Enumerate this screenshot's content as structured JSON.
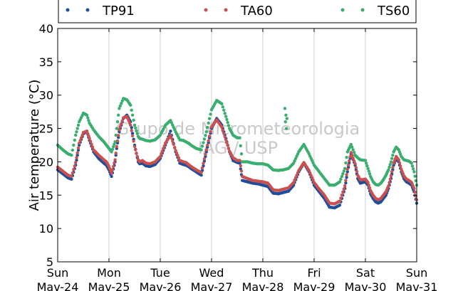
{
  "chart_data": {
    "type": "scatter",
    "ylabel": "Air temperature (°C)",
    "ylim": [
      5,
      40
    ],
    "yticks": [
      "5",
      "10",
      "15",
      "20",
      "25",
      "30",
      "35",
      "40"
    ],
    "xlim": [
      0,
      7
    ],
    "xticks": [
      {
        "day": "Sun",
        "date": "Mav-24"
      },
      {
        "day": "Mon",
        "date": "Mav-25"
      },
      {
        "day": "Tue",
        "date": "Mav-26"
      },
      {
        "day": "Wed",
        "date": "Mav-27"
      },
      {
        "day": "Thu",
        "date": "Mav-28"
      },
      {
        "day": "Fri",
        "date": "Mav-29"
      },
      {
        "day": "Sat",
        "date": "Mav-30"
      },
      {
        "day": "Sun",
        "date": "Mav-31"
      }
    ],
    "grid": "vertical",
    "legend": "top",
    "watermark": [
      "Grupo de Micrometeorologia",
      "IAG / USP"
    ],
    "series": [
      {
        "name": "TP91",
        "color": "#1f4e9a",
        "x": [
          0,
          0.1,
          0.2,
          0.27,
          0.35,
          0.42,
          0.5,
          0.57,
          0.62,
          0.7,
          0.8,
          0.9,
          0.95,
          1.0,
          1.05,
          1.12,
          1.15,
          1.2,
          1.28,
          1.35,
          1.42,
          1.5,
          1.57,
          1.6,
          1.65,
          1.72,
          1.8,
          1.9,
          2.0,
          2.1,
          2.2,
          2.3,
          2.38,
          2.45,
          2.5,
          2.55,
          2.6,
          2.7,
          2.8,
          2.9,
          3.0,
          3.1,
          3.2,
          3.28,
          3.35,
          3.42,
          3.5,
          3.55,
          3.6,
          3.7,
          3.8,
          3.9,
          4.0,
          4.1,
          4.2,
          4.3,
          4.4,
          4.5,
          4.6,
          4.7,
          4.8,
          4.9,
          5.0,
          5.1,
          5.2,
          5.3,
          5.4,
          5.5,
          5.6,
          5.65,
          5.72,
          5.8,
          5.85,
          5.9,
          6.0,
          6.05,
          6.1,
          6.15,
          6.2,
          6.25,
          6.3,
          6.35,
          6.4,
          6.45,
          6.5,
          6.55,
          6.6,
          6.65,
          6.7,
          6.75,
          6.8,
          6.85,
          6.9,
          6.95,
          7.0
        ],
        "y": [
          18.8,
          18.2,
          17.6,
          17.4,
          19.5,
          22.5,
          24.2,
          24.6,
          23.2,
          21.5,
          20.5,
          19.8,
          19.5,
          18.8,
          17.8,
          20.0,
          22.0,
          24.5,
          26.5,
          27.0,
          26.0,
          22.5,
          20.0,
          19.7,
          19.8,
          19.4,
          19.3,
          19.6,
          20.5,
          22.5,
          24.6,
          21.5,
          19.8,
          19.6,
          19.5,
          19.3,
          19.0,
          18.5,
          18.0,
          21.5,
          25.0,
          26.5,
          25.5,
          23.5,
          21.5,
          20.2,
          19.9,
          19.8,
          17.2,
          17.0,
          16.8,
          16.7,
          16.5,
          16.3,
          15.3,
          15.2,
          15.4,
          15.6,
          16.5,
          18.5,
          19.8,
          18.5,
          16.5,
          15.5,
          14.5,
          13.2,
          13.1,
          13.5,
          16.0,
          18.5,
          21.2,
          19.5,
          17.5,
          16.8,
          17.0,
          16.5,
          15.2,
          14.5,
          14.0,
          13.8,
          14.0,
          14.5,
          15.0,
          16.0,
          17.5,
          19.5,
          20.5,
          20.0,
          18.5,
          17.5,
          17.0,
          16.8,
          16.5,
          15.5,
          13.8
        ]
      },
      {
        "name": "TA60",
        "color": "#c9504f",
        "x": [
          0,
          0.1,
          0.2,
          0.27,
          0.35,
          0.42,
          0.5,
          0.57,
          0.62,
          0.7,
          0.8,
          0.9,
          0.95,
          1.0,
          1.05,
          1.12,
          1.15,
          1.2,
          1.28,
          1.35,
          1.42,
          1.5,
          1.57,
          1.6,
          1.65,
          1.72,
          1.8,
          1.9,
          2.0,
          2.1,
          2.2,
          2.3,
          2.38,
          2.45,
          2.5,
          2.55,
          2.6,
          2.7,
          2.8,
          2.9,
          3.0,
          3.1,
          3.2,
          3.28,
          3.35,
          3.42,
          3.5,
          3.55,
          3.6,
          3.7,
          3.8,
          3.9,
          4.0,
          4.1,
          4.2,
          4.3,
          4.4,
          4.5,
          4.6,
          4.7,
          4.8,
          4.9,
          5.0,
          5.1,
          5.2,
          5.3,
          5.4,
          5.5,
          5.6,
          5.65,
          5.72,
          5.8,
          5.85,
          5.9,
          6.0,
          6.05,
          6.1,
          6.15,
          6.2,
          6.25,
          6.3,
          6.35,
          6.4,
          6.45,
          6.5,
          6.55,
          6.6,
          6.65,
          6.7,
          6.75,
          6.8,
          6.85,
          6.9,
          6.95,
          7.0
        ],
        "y": [
          19.2,
          18.6,
          18.0,
          17.8,
          19.9,
          22.8,
          24.4,
          24.6,
          23.5,
          21.8,
          21.0,
          20.3,
          20.0,
          19.3,
          18.3,
          20.3,
          22.3,
          24.8,
          26.6,
          26.8,
          25.5,
          22.3,
          20.3,
          20.0,
          20.2,
          19.8,
          19.7,
          20.0,
          20.8,
          22.8,
          24.0,
          21.7,
          20.2,
          20.0,
          19.9,
          19.6,
          19.3,
          18.8,
          18.4,
          21.8,
          25.2,
          26.3,
          25.2,
          23.3,
          21.6,
          20.6,
          20.2,
          20.2,
          17.8,
          17.5,
          17.2,
          17.1,
          17.0,
          16.8,
          15.8,
          15.7,
          15.9,
          16.1,
          16.9,
          18.7,
          19.9,
          18.7,
          16.9,
          15.9,
          15.0,
          13.8,
          13.7,
          14.1,
          16.4,
          18.9,
          21.4,
          19.7,
          18.0,
          17.3,
          17.4,
          16.9,
          15.7,
          15.0,
          14.5,
          14.3,
          14.5,
          15.0,
          15.5,
          16.4,
          17.9,
          19.8,
          20.8,
          20.3,
          18.9,
          17.9,
          17.4,
          17.2,
          16.9,
          16.0,
          14.3
        ]
      },
      {
        "name": "TS60",
        "color": "#3aae6e",
        "x": [
          0,
          0.1,
          0.2,
          0.27,
          0.35,
          0.42,
          0.5,
          0.57,
          0.62,
          0.7,
          0.8,
          0.9,
          0.95,
          1.0,
          1.05,
          1.12,
          1.15,
          1.2,
          1.28,
          1.35,
          1.42,
          1.5,
          1.57,
          1.6,
          1.65,
          1.72,
          1.8,
          1.9,
          2.0,
          2.1,
          2.2,
          2.3,
          2.38,
          2.45,
          2.5,
          2.55,
          2.6,
          2.7,
          2.8,
          2.9,
          3.0,
          3.1,
          3.2,
          3.28,
          3.35,
          3.42,
          3.5,
          3.55,
          3.6,
          3.7,
          3.8,
          3.9,
          4.0,
          4.1,
          4.2,
          4.3,
          4.4,
          4.5,
          4.6,
          4.7,
          4.8,
          4.9,
          5.0,
          5.1,
          5.2,
          5.3,
          5.4,
          5.5,
          5.6,
          5.65,
          5.72,
          5.8,
          5.85,
          5.9,
          6.0,
          6.05,
          6.1,
          6.15,
          6.2,
          6.25,
          6.3,
          6.35,
          6.4,
          6.45,
          6.5,
          6.55,
          6.6,
          6.65,
          6.7,
          6.75,
          6.8,
          6.85,
          6.9,
          6.95,
          7.0,
          4.43,
          4.45,
          4.47,
          4.44,
          4.46
        ],
        "y": [
          22.5,
          21.8,
          21.2,
          21.0,
          24.0,
          26.0,
          27.3,
          27.0,
          25.8,
          24.8,
          23.8,
          23.0,
          22.5,
          22.0,
          21.5,
          23.0,
          25.0,
          28.0,
          29.5,
          29.3,
          28.5,
          25.5,
          23.8,
          23.5,
          23.4,
          23.2,
          23.1,
          23.3,
          24.0,
          25.5,
          26.2,
          24.5,
          23.3,
          23.2,
          23.0,
          22.8,
          22.5,
          22.0,
          21.8,
          24.5,
          27.8,
          29.2,
          28.7,
          26.8,
          25.0,
          24.0,
          23.6,
          23.6,
          20.0,
          20.0,
          19.8,
          19.7,
          19.7,
          19.5,
          18.8,
          18.7,
          18.8,
          19.0,
          19.8,
          21.5,
          22.6,
          21.2,
          19.5,
          18.5,
          17.5,
          16.5,
          16.5,
          17.0,
          19.0,
          21.5,
          22.6,
          21.0,
          20.6,
          20.3,
          20.2,
          19.0,
          17.8,
          17.0,
          16.6,
          16.5,
          16.8,
          17.3,
          18.0,
          18.8,
          20.0,
          21.5,
          22.2,
          21.8,
          20.8,
          20.3,
          20.2,
          20.1,
          19.8,
          18.5,
          16.5,
          28.0,
          27.0,
          26.5,
          26.0,
          25.0
        ]
      }
    ]
  }
}
